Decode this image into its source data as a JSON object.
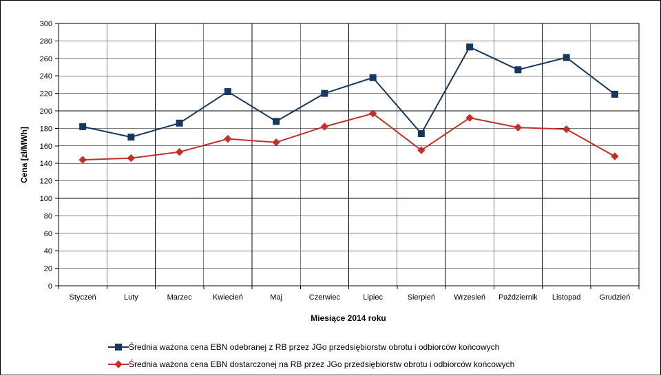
{
  "chart_data": {
    "type": "line",
    "xlabel": "Miesiące 2014 roku",
    "ylabel": "Cena [zł/MWh]",
    "ylim": [
      0,
      300
    ],
    "ytick_step": 20,
    "grid": true,
    "legend_position": "bottom",
    "categories": [
      "Styczeń",
      "Luty",
      "Marzec",
      "Kwiecień",
      "Maj",
      "Czerwiec",
      "Lipiec",
      "Sierpień",
      "Wrzesień",
      "Październik",
      "Listopad",
      "Grudzień"
    ],
    "series": [
      {
        "name": "Średnia ważona cena EBN odebranej z RB przez JGo przedsiębiorstw obrotu i odbiorców końcowych",
        "color": "#17375e",
        "marker": "square",
        "values": [
          182,
          170,
          186,
          222,
          188,
          220,
          238,
          174,
          273,
          247,
          261,
          219
        ]
      },
      {
        "name": "Średnia ważona cena EBN dostarczonej na RB przez JGo przedsiębiorstw obrotu i odbiorców końcowych",
        "color": "#c0312b",
        "marker": "diamond",
        "values": [
          144,
          146,
          153,
          168,
          164,
          182,
          197,
          155,
          192,
          181,
          179,
          148
        ]
      }
    ]
  }
}
